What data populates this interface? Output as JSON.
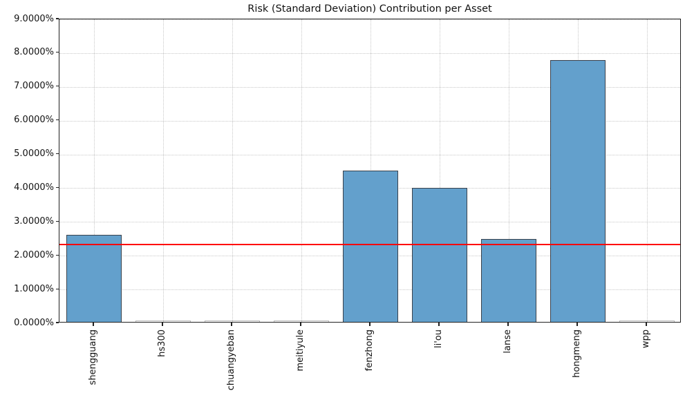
{
  "chart_data": {
    "type": "bar",
    "title": "Risk (Standard Deviation) Contribution per Asset",
    "categories": [
      "shengguang",
      "hs300",
      "chuangyeban",
      "meitiyule",
      "fenzhong",
      "li'ou",
      "lanse",
      "hongmeng",
      "wpp"
    ],
    "values": [
      2.57,
      0.0,
      0.0,
      0.0,
      4.47,
      3.97,
      2.46,
      7.76,
      0.0
    ],
    "value_format": "percent",
    "xlabel": "",
    "ylabel": "",
    "ylim": [
      0,
      9
    ],
    "ytick_values": [
      0,
      1,
      2,
      3,
      4,
      5,
      6,
      7,
      8,
      9
    ],
    "ytick_labels": [
      "0.0000%",
      "1.0000%",
      "2.0000%",
      "3.0000%",
      "4.0000%",
      "5.0000%",
      "6.0000%",
      "7.0000%",
      "8.0000%",
      "9.0000%"
    ],
    "x_tick_rotation": 90,
    "grid": true,
    "grid_style": "dotted",
    "legend_position": "none",
    "reference_line": {
      "value": 2.36,
      "color": "#ff0000"
    },
    "colors": {
      "bar_fill": "#63a0cc",
      "bar_edge": "#3a414b",
      "tiny_bar_edge": "#b9b9b9",
      "grid": "#c7c7c7",
      "spine": "#1f1f1f",
      "text": "#111111",
      "background": "#ffffff"
    }
  }
}
